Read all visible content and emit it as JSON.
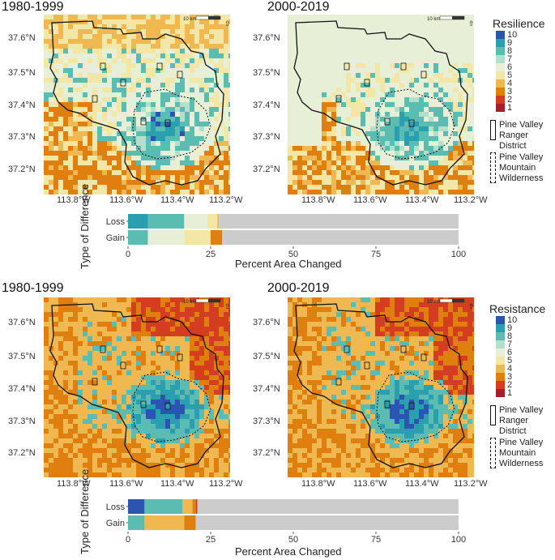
{
  "palette": {
    "1": "#a3202b",
    "2": "#d43d1f",
    "3": "#de7f10",
    "4": "#efb850",
    "5": "#f2e7a7",
    "6": "#e7efd6",
    "7": "#b3dfcb",
    "8": "#5bbdb2",
    "9": "#2a9fb0",
    "10": "#2b55b0",
    "none": "#cccccc"
  },
  "latitude_ticks": [
    "37.6°N",
    "37.5°N",
    "37.4°N",
    "37.3°N",
    "37.2°N"
  ],
  "longitude_ticks": [
    "113.8°W",
    "113.6°W",
    "113.4°W",
    "113.2°W"
  ],
  "scale_label": "10 km",
  "north_icon": "north-arrow-icon",
  "boundary_legend": {
    "district": "Pine Valley Ranger District",
    "wilderness": "Pine Valley Mountain Wilderness"
  },
  "panels": [
    {
      "metric": "Resilience",
      "period_left": "1980-1999",
      "period_right": "2000-2019",
      "legend_levels": [
        "10",
        "9",
        "8",
        "7",
        "6",
        "5",
        "4",
        "3",
        "2",
        "1"
      ],
      "chart_data": {
        "type": "bar",
        "title": "",
        "xlabel": "Percent Area Changed",
        "ylabel": "Type of Difference",
        "categories": [
          "Loss",
          "Gain"
        ],
        "x_ticks": [
          "0",
          "25",
          "50",
          "75",
          "100"
        ],
        "xlim": [
          0,
          100
        ],
        "stacked": true,
        "series": [
          {
            "category": "Loss",
            "segments": [
              {
                "level": "9",
                "value": 6
              },
              {
                "level": "8",
                "value": 11
              },
              {
                "level": "6",
                "value": 7
              },
              {
                "level": "5",
                "value": 3
              },
              {
                "level": "4",
                "value": 0.5
              },
              {
                "level": "none",
                "value": 72.5
              }
            ]
          },
          {
            "category": "Gain",
            "segments": [
              {
                "level": "8",
                "value": 6
              },
              {
                "level": "6",
                "value": 11
              },
              {
                "level": "5",
                "value": 8
              },
              {
                "level": "3",
                "value": 3.5
              },
              {
                "level": "none",
                "value": 71.5
              }
            ]
          }
        ]
      }
    },
    {
      "metric": "Resistance",
      "period_left": "1980-1999",
      "period_right": "2000-2019",
      "legend_levels": [
        "10",
        "9",
        "8",
        "7",
        "6",
        "5",
        "4",
        "3",
        "2",
        "1"
      ],
      "chart_data": {
        "type": "bar",
        "title": "",
        "xlabel": "Percent Area Changed",
        "ylabel": "Type of Difference",
        "categories": [
          "Loss",
          "Gain"
        ],
        "x_ticks": [
          "0",
          "25",
          "50",
          "75",
          "100"
        ],
        "xlim": [
          0,
          100
        ],
        "stacked": true,
        "series": [
          {
            "category": "Loss",
            "segments": [
              {
                "level": "10",
                "value": 5
              },
              {
                "level": "8",
                "value": 11.5
              },
              {
                "level": "4",
                "value": 3
              },
              {
                "level": "3",
                "value": 1
              },
              {
                "level": "2",
                "value": 0.5
              },
              {
                "level": "none",
                "value": 79
              }
            ]
          },
          {
            "category": "Gain",
            "segments": [
              {
                "level": "8",
                "value": 5
              },
              {
                "level": "4",
                "value": 12
              },
              {
                "level": "3",
                "value": 3.5
              },
              {
                "level": "none",
                "value": 79.5
              }
            ]
          }
        ]
      }
    }
  ]
}
